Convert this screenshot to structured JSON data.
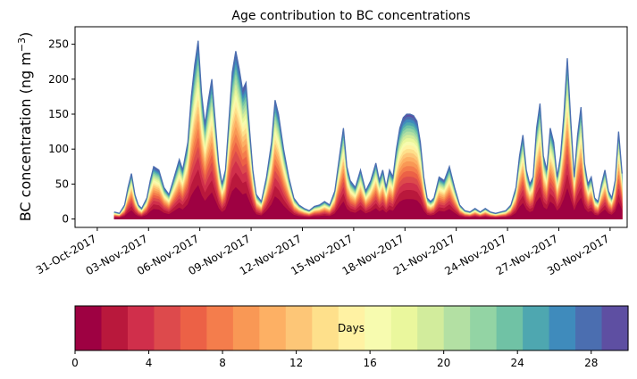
{
  "chart_data": {
    "type": "area",
    "stacked": true,
    "title": "Age contribution to BC concentrations",
    "ylabel_main": "BC concentration (ng m",
    "ylabel_sup": "−3",
    "ylabel_close": ")",
    "ylim": [
      -12,
      275
    ],
    "yticks": [
      0,
      50,
      100,
      150,
      200,
      250
    ],
    "xlim_days": [
      -1.3,
      31.0
    ],
    "xtick_days": [
      0,
      3,
      6,
      9,
      12,
      15,
      18,
      21,
      24,
      27,
      30
    ],
    "xtick_labels": [
      "31-Oct-2017",
      "03-Nov-2017",
      "06-Nov-2017",
      "09-Nov-2017",
      "12-Nov-2017",
      "15-Nov-2017",
      "18-Nov-2017",
      "21-Nov-2017",
      "24-Nov-2017",
      "27-Nov-2017",
      "30-Nov-2017"
    ],
    "total_concentration": {
      "x_days": [
        1.0,
        1.3,
        1.6,
        1.8,
        2.0,
        2.2,
        2.4,
        2.6,
        2.9,
        3.1,
        3.3,
        3.6,
        3.9,
        4.2,
        4.5,
        4.8,
        5.0,
        5.3,
        5.5,
        5.7,
        5.9,
        6.1,
        6.3,
        6.5,
        6.7,
        6.9,
        7.1,
        7.3,
        7.5,
        7.7,
        7.9,
        8.1,
        8.3,
        8.5,
        8.7,
        8.9,
        9.1,
        9.3,
        9.6,
        9.9,
        10.2,
        10.4,
        10.6,
        10.9,
        11.2,
        11.5,
        11.8,
        12.1,
        12.4,
        12.7,
        13.0,
        13.3,
        13.6,
        13.9,
        14.2,
        14.4,
        14.6,
        14.8,
        15.1,
        15.4,
        15.7,
        16.0,
        16.3,
        16.5,
        16.7,
        16.9,
        17.1,
        17.3,
        17.5,
        17.7,
        17.9,
        18.1,
        18.3,
        18.5,
        18.7,
        18.9,
        19.1,
        19.3,
        19.5,
        19.7,
        20.0,
        20.3,
        20.6,
        20.9,
        21.2,
        21.5,
        21.8,
        22.1,
        22.4,
        22.7,
        23.0,
        23.3,
        23.6,
        23.9,
        24.2,
        24.5,
        24.7,
        24.9,
        25.1,
        25.3,
        25.5,
        25.7,
        25.9,
        26.1,
        26.3,
        26.5,
        26.7,
        26.9,
        27.1,
        27.3,
        27.5,
        27.7,
        27.9,
        28.1,
        28.3,
        28.5,
        28.7,
        28.9,
        29.1,
        29.3,
        29.5,
        29.7,
        29.9,
        30.1,
        30.3,
        30.5,
        30.7
      ],
      "bc": [
        10,
        8,
        20,
        45,
        65,
        35,
        20,
        15,
        30,
        55,
        75,
        70,
        45,
        35,
        60,
        85,
        70,
        110,
        175,
        220,
        255,
        180,
        135,
        170,
        200,
        140,
        80,
        50,
        70,
        140,
        210,
        240,
        215,
        185,
        195,
        130,
        70,
        35,
        25,
        60,
        110,
        170,
        150,
        100,
        60,
        30,
        20,
        15,
        12,
        18,
        20,
        25,
        20,
        40,
        95,
        130,
        75,
        55,
        45,
        70,
        40,
        55,
        80,
        55,
        70,
        45,
        70,
        60,
        100,
        130,
        145,
        150,
        150,
        148,
        140,
        110,
        60,
        30,
        25,
        30,
        60,
        55,
        75,
        45,
        20,
        12,
        10,
        15,
        10,
        15,
        10,
        8,
        10,
        12,
        20,
        45,
        90,
        120,
        70,
        50,
        60,
        130,
        165,
        90,
        70,
        130,
        110,
        60,
        90,
        150,
        230,
        140,
        60,
        120,
        160,
        80,
        50,
        60,
        30,
        25,
        50,
        70,
        40,
        30,
        55,
        125,
        65,
        50
      ]
    },
    "colorbar": {
      "label": "Days",
      "ticks": [
        0,
        4,
        8,
        12,
        16,
        20,
        24,
        28
      ],
      "range": [
        0,
        30
      ],
      "colors": [
        "#9e0142",
        "#b9183c",
        "#d02f4b",
        "#dd4a4c",
        "#ec6146",
        "#f47d4c",
        "#f99855",
        "#fdb064",
        "#fdc677",
        "#fee08b",
        "#fff2a3",
        "#f7fbaf",
        "#eaf79d",
        "#d2ec9c",
        "#b3e0a3",
        "#93d4a4",
        "#70c2a5",
        "#4ea7b0",
        "#3f8bbc",
        "#4b6eb0",
        "#5e4fa2"
      ]
    }
  }
}
